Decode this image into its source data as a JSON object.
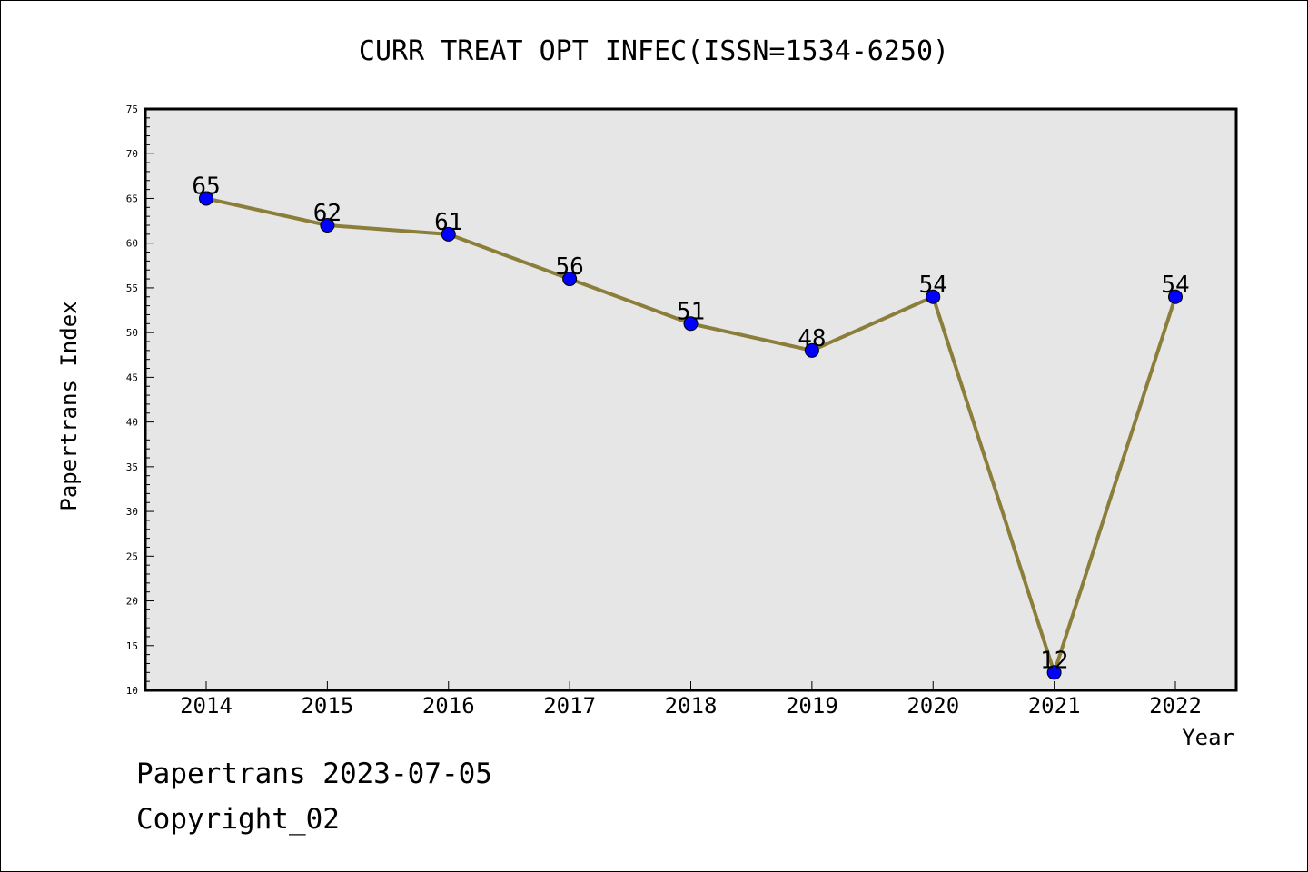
{
  "chart_data": {
    "type": "line",
    "title": "CURR TREAT OPT INFEC(ISSN=1534-6250)",
    "xlabel": "Year",
    "ylabel": "Papertrans Index",
    "x": [
      "2014",
      "2015",
      "2016",
      "2017",
      "2018",
      "2019",
      "2020",
      "2021",
      "2022"
    ],
    "series": [
      {
        "values": [
          65,
          62,
          61,
          56,
          51,
          48,
          54,
          12,
          54
        ]
      }
    ],
    "ylim": [
      10,
      75
    ],
    "yticks": [
      10,
      15,
      20,
      25,
      30,
      35,
      40,
      45,
      50,
      55,
      60,
      65,
      70,
      75
    ],
    "grid": false,
    "legend": "none",
    "colors": {
      "plot_background": "#e6e6e6",
      "line": "#8b7d3a",
      "marker": "#0000ff"
    }
  },
  "footer": {
    "line1": "Papertrans 2023-07-05",
    "line2": "Copyright_02"
  }
}
